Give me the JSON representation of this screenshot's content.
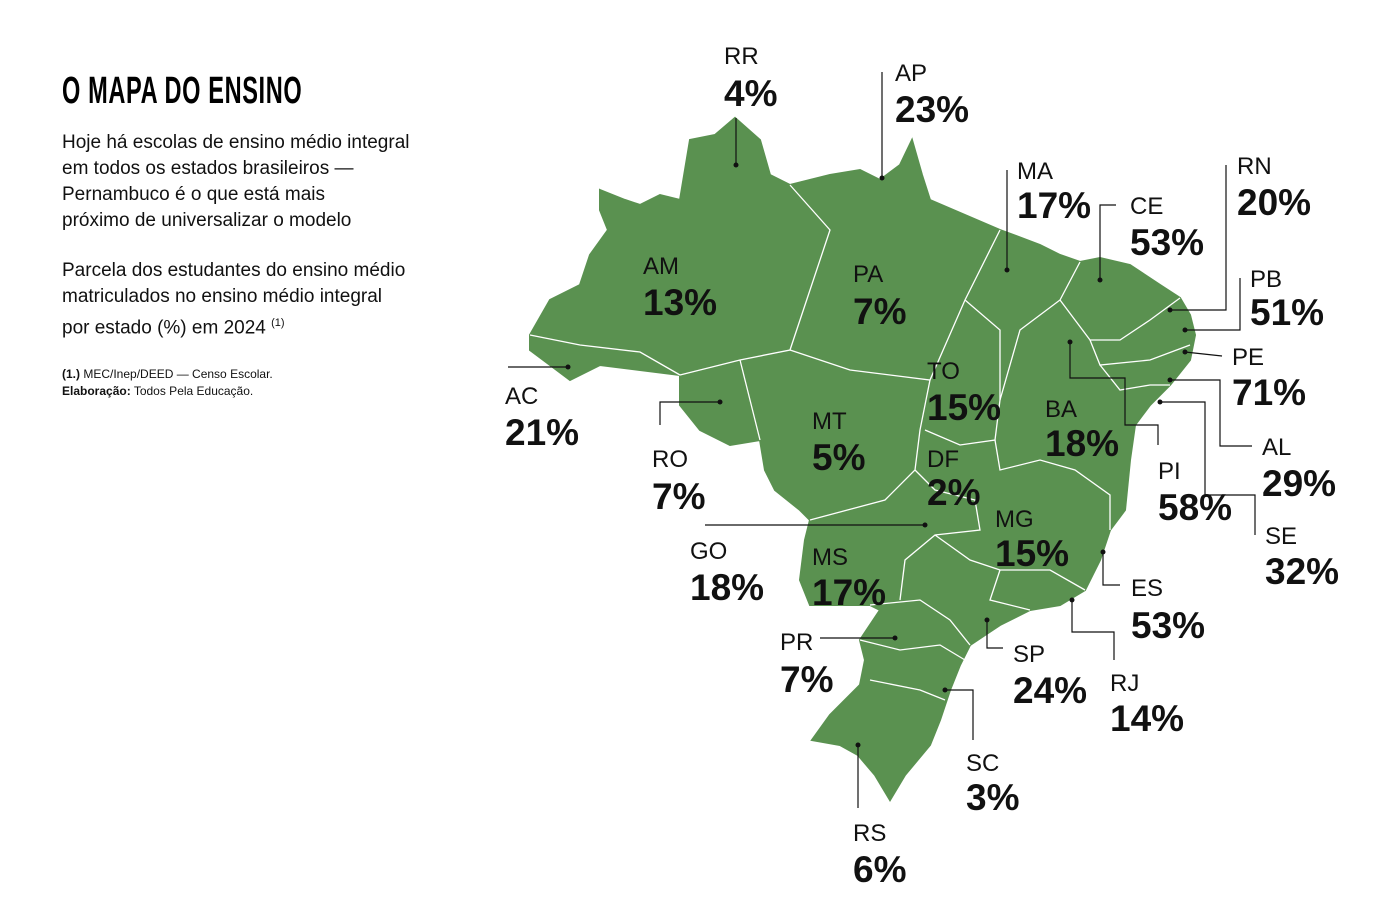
{
  "title": "O MAPA DO ENSINO",
  "intro": [
    "Hoje há escolas de ensino médio integral",
    "em todos os estados brasileiros —",
    "Pernambuco é o que está mais",
    "próximo de universalizar o modelo"
  ],
  "subtitle": [
    "Parcela dos estudantes do ensino médio",
    "matriculados no ensino médio integral",
    "por estado (%) em 2024"
  ],
  "subtitle_note": "(1)",
  "source": {
    "marker": "(1.)",
    "text": "MEC/Inep/DEED — Censo Escolar."
  },
  "credit": {
    "label": "Elaboração:",
    "text": "Todos Pela Educação."
  },
  "states": [
    {
      "code": "RR",
      "value": "4%"
    },
    {
      "code": "AP",
      "value": "23%"
    },
    {
      "code": "MA",
      "value": "17%"
    },
    {
      "code": "CE",
      "value": "53%"
    },
    {
      "code": "RN",
      "value": "20%"
    },
    {
      "code": "PB",
      "value": "51%"
    },
    {
      "code": "PE",
      "value": "71%"
    },
    {
      "code": "AL",
      "value": "29%"
    },
    {
      "code": "SE",
      "value": "32%"
    },
    {
      "code": "PI",
      "value": "58%"
    },
    {
      "code": "BA",
      "value": "18%"
    },
    {
      "code": "AM",
      "value": "13%"
    },
    {
      "code": "PA",
      "value": "7%"
    },
    {
      "code": "AC",
      "value": "21%"
    },
    {
      "code": "RO",
      "value": "7%"
    },
    {
      "code": "MT",
      "value": "5%"
    },
    {
      "code": "TO",
      "value": "15%"
    },
    {
      "code": "DF",
      "value": "2%"
    },
    {
      "code": "GO",
      "value": "18%"
    },
    {
      "code": "MS",
      "value": "17%"
    },
    {
      "code": "MG",
      "value": "15%"
    },
    {
      "code": "ES",
      "value": "53%"
    },
    {
      "code": "SP",
      "value": "24%"
    },
    {
      "code": "RJ",
      "value": "14%"
    },
    {
      "code": "PR",
      "value": "7%"
    },
    {
      "code": "SC",
      "value": "3%"
    },
    {
      "code": "RS",
      "value": "6%"
    }
  ]
}
